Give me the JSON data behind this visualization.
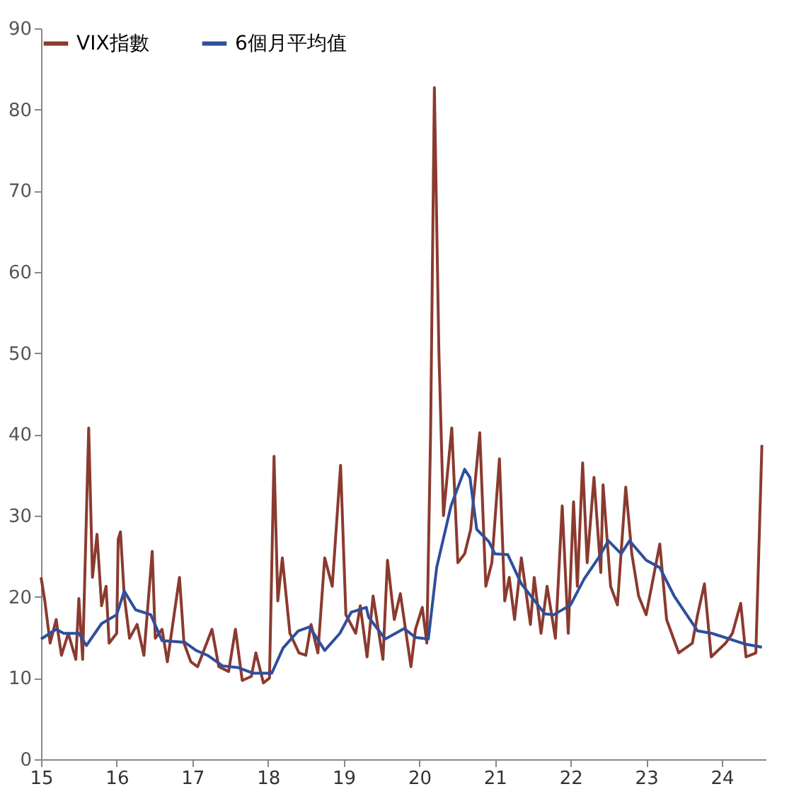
{
  "chart_data": {
    "type": "line",
    "xlim": [
      15,
      24.58
    ],
    "xticks": [
      15,
      16,
      17,
      18,
      19,
      20,
      21,
      22,
      23,
      24
    ],
    "ylim": [
      0,
      90
    ],
    "yticks": [
      0,
      10,
      20,
      30,
      40,
      50,
      60,
      70,
      80,
      90
    ],
    "grid": false,
    "legend": "top",
    "marker": "none",
    "line_style": "solid",
    "series": [
      {
        "name": "VIX指數",
        "color": "#8b3a2f",
        "x": [
          15.0,
          15.05,
          15.12,
          15.2,
          15.27,
          15.36,
          15.46,
          15.5,
          15.55,
          15.63,
          15.68,
          15.74,
          15.8,
          15.86,
          15.9,
          16.0,
          16.02,
          16.05,
          16.1,
          16.17,
          16.27,
          16.36,
          16.47,
          16.51,
          16.6,
          16.67,
          16.83,
          16.89,
          16.98,
          17.07,
          17.26,
          17.35,
          17.48,
          17.57,
          17.66,
          17.78,
          17.84,
          17.94,
          18.02,
          18.08,
          18.13,
          18.19,
          18.29,
          18.41,
          18.5,
          18.57,
          18.66,
          18.75,
          18.85,
          18.96,
          19.03,
          19.16,
          19.22,
          19.31,
          19.39,
          19.52,
          19.58,
          19.67,
          19.75,
          19.89,
          19.95,
          20.04,
          20.1,
          20.15,
          20.2,
          20.26,
          20.32,
          20.43,
          20.51,
          20.6,
          20.68,
          20.8,
          20.88,
          20.96,
          21.06,
          21.13,
          21.19,
          21.26,
          21.35,
          21.47,
          21.52,
          21.61,
          21.69,
          21.8,
          21.89,
          21.97,
          22.04,
          22.09,
          22.16,
          22.22,
          22.31,
          22.4,
          22.43,
          22.53,
          22.62,
          22.73,
          22.81,
          22.9,
          23.0,
          23.18,
          23.27,
          23.43,
          23.61,
          23.68,
          23.77,
          23.86,
          24.05,
          24.14,
          24.25,
          24.32,
          24.45,
          24.53
        ],
        "values": [
          22.4,
          19.5,
          14.3,
          17.2,
          12.8,
          15.5,
          12.3,
          19.8,
          12.3,
          40.8,
          22.4,
          27.7,
          18.9,
          21.3,
          14.3,
          15.5,
          27.1,
          28,
          20.1,
          14.9,
          16.6,
          12.8,
          25.6,
          14.9,
          16,
          12,
          22.4,
          14.3,
          12,
          11.4,
          16,
          11.4,
          10.8,
          16,
          9.7,
          10.2,
          13.1,
          9.4,
          10,
          37.3,
          19.5,
          24.8,
          15.5,
          13.1,
          12.8,
          16.6,
          13.1,
          24.8,
          21.3,
          36.2,
          17.8,
          15.5,
          18.9,
          12.6,
          20.1,
          12.3,
          24.5,
          17.2,
          20.4,
          11.4,
          16,
          18.7,
          14.3,
          40.2,
          82.7,
          50,
          30,
          40.8,
          24.2,
          25.3,
          28.3,
          40.2,
          21.3,
          24.2,
          37,
          19.5,
          22.4,
          17.2,
          24.8,
          16.6,
          22.4,
          15.5,
          21.3,
          14.9,
          31.2,
          15.5,
          31.7,
          21.3,
          36.5,
          24.2,
          34.7,
          23,
          33.8,
          21.3,
          19,
          33.5,
          25.3,
          20.1,
          17.8,
          26.5,
          17.2,
          13.1,
          14.3,
          17.8,
          21.6,
          12.6,
          14.3,
          15.5,
          19.2,
          12.6,
          13.1,
          38.7
        ]
      },
      {
        "name": "6個月平均值",
        "color": "#2e4f9c",
        "x": [
          15.0,
          15.2,
          15.3,
          15.5,
          15.6,
          15.8,
          16.0,
          16.1,
          16.25,
          16.45,
          16.6,
          16.9,
          17.05,
          17.2,
          17.4,
          17.6,
          17.8,
          18.05,
          18.2,
          18.4,
          18.55,
          18.75,
          18.95,
          19.1,
          19.3,
          19.33,
          19.55,
          19.8,
          19.95,
          20.12,
          20.23,
          20.42,
          20.6,
          20.67,
          20.76,
          20.92,
          21.0,
          21.17,
          21.35,
          21.66,
          21.78,
          22.0,
          22.18,
          22.37,
          22.5,
          22.67,
          22.78,
          23.0,
          23.18,
          23.37,
          23.68,
          23.87,
          24.3,
          24.53
        ],
        "values": [
          14.8,
          16,
          15.5,
          15.5,
          14,
          16.7,
          17.8,
          20.7,
          18.4,
          17.8,
          14.6,
          14.4,
          13.4,
          12.8,
          11.5,
          11.3,
          10.6,
          10.6,
          13.7,
          15.8,
          16.3,
          13.4,
          15.5,
          18.1,
          18.7,
          17.5,
          14.8,
          16.1,
          15,
          14.8,
          23.6,
          31.2,
          35.7,
          34.7,
          28.3,
          26.8,
          25.3,
          25.2,
          21.6,
          17.9,
          17.8,
          19,
          22.2,
          24.8,
          26.9,
          25.3,
          26.9,
          24.5,
          23.6,
          20.1,
          15.8,
          15.5,
          14.2,
          13.8
        ]
      }
    ]
  }
}
